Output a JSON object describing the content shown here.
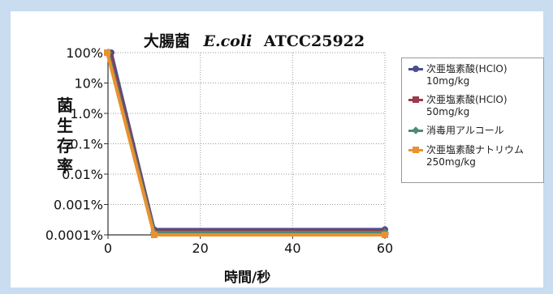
{
  "chart_data": {
    "type": "line",
    "title_jp": "大腸菌",
    "title_species": "E.coli",
    "title_strain": "ATCC25922",
    "xlabel": "時間/秒",
    "ylabel": "菌生存率",
    "x_ticks": [
      "0",
      "20",
      "40",
      "60"
    ],
    "y_ticks": [
      "100%",
      "10%",
      "1.0%",
      "0.1%",
      "0.01%",
      "0.001%",
      "0.0001%"
    ],
    "xlim": [
      0,
      60
    ],
    "ylim_percent": [
      0.0001,
      100
    ],
    "y_scale": "log",
    "grid": "dotted",
    "legend_position": "right",
    "series": [
      {
        "name": "次亜塩素酸(HClO)",
        "name2": "10mg/kg",
        "color": "#4a4f8c",
        "marker": "circle",
        "x": [
          0,
          10,
          60
        ],
        "y": [
          100,
          0.00015,
          0.00015
        ]
      },
      {
        "name": "次亜塩素酸(HClO)",
        "name2": "50mg/kg",
        "color": "#9b3a4c",
        "marker": "triangle",
        "x": [
          0,
          10,
          60
        ],
        "y": [
          100,
          0.00013,
          0.00013
        ]
      },
      {
        "name": "消毒用アルコール",
        "name2": "",
        "color": "#4e8a76",
        "marker": "diamond",
        "x": [
          0,
          10,
          60
        ],
        "y": [
          100,
          0.00012,
          0.00012
        ]
      },
      {
        "name": "次亜塩素酸ナトリウム",
        "name2": "250mg/kg",
        "color": "#e8922f",
        "marker": "square",
        "x": [
          0,
          10,
          60
        ],
        "y": [
          100,
          0.0001,
          0.0001
        ]
      }
    ]
  }
}
